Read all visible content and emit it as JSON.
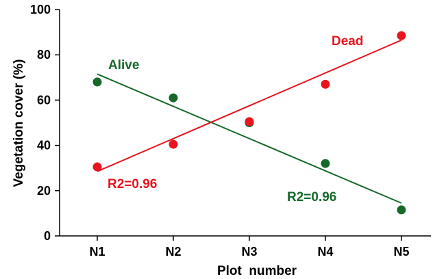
{
  "chart_data": {
    "type": "scatter",
    "xlabel": "Plot  number",
    "ylabel": "Vegetation cover (%)",
    "categories": [
      "N1",
      "N2",
      "N3",
      "N4",
      "N5"
    ],
    "ylim": [
      0,
      100
    ],
    "yticks": [
      "0",
      "20",
      "40",
      "60",
      "80",
      "100"
    ],
    "grid": false,
    "series": [
      {
        "name": "Alive",
        "color": "#16692a",
        "values": [
          68,
          61,
          50,
          32,
          11.5
        ],
        "trendline": {
          "start": 71.5,
          "end": 14.5
        },
        "r2_label": "R2=0.96"
      },
      {
        "name": "Dead",
        "color": "#e8141e",
        "values": [
          30.5,
          40.5,
          50.5,
          67,
          88.5
        ],
        "trendline": {
          "start": 28.5,
          "end": 86.5
        },
        "r2_label": "R2=0.96"
      }
    ]
  }
}
